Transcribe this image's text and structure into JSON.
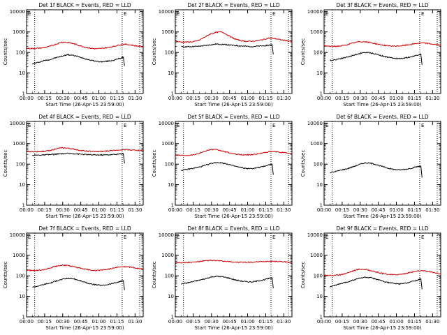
{
  "figure": {
    "panels": [
      {
        "id": "1f",
        "title": "Det 1f BLACK = Events, RED = LLD"
      },
      {
        "id": "2f",
        "title": "Det 2f BLACK = Events, RED = LLD"
      },
      {
        "id": "3f",
        "title": "Det 3f BLACK = Events, RED = LLD"
      },
      {
        "id": "4f",
        "title": "Det 4f BLACK = Events, RED = LLD"
      },
      {
        "id": "5f",
        "title": "Det 5f BLACK = Events, RED = LLD"
      },
      {
        "id": "6f",
        "title": "Det 6f BLACK = Events, RED = LLD"
      },
      {
        "id": "7f",
        "title": "Det 7f BLACK = Events, RED = LLD"
      },
      {
        "id": "8f",
        "title": "Det 8f BLACK = Events, RED = LLD"
      },
      {
        "id": "9f",
        "title": "Det 9f BLACK = Events, RED = LLD"
      }
    ]
  },
  "chart_data": [
    {
      "type": "line",
      "title": "Det 1f BLACK = Events, RED = LLD",
      "xlabel": "Start Time (26-Apr-15 23:59:00)",
      "ylabel": "Counts/sec",
      "y_scale": "log",
      "ylim": [
        1,
        12000
      ],
      "xlim": [
        0,
        100
      ],
      "x_tick_labels": [
        "00:00",
        "00:15",
        "00:30",
        "00:45",
        "01:00",
        "01:15",
        "01:30"
      ],
      "y_tick_labels": [
        "1",
        "10",
        "100",
        "1000",
        "10000"
      ],
      "vlines": [
        7,
        82,
        97
      ],
      "edge_markers": [
        "E",
        "E"
      ],
      "series": [
        {
          "color": "#000000",
          "x": [
            5,
            10,
            15,
            20,
            25,
            30,
            35,
            40,
            45,
            50,
            55,
            60,
            65,
            70,
            75,
            80,
            83,
            84
          ],
          "y": [
            28,
            33,
            40,
            45,
            55,
            65,
            78,
            72,
            62,
            50,
            42,
            37,
            35,
            38,
            42,
            52,
            58,
            22
          ]
        },
        {
          "color": "#cc0000",
          "x": [
            0,
            5,
            10,
            15,
            20,
            25,
            30,
            35,
            40,
            45,
            50,
            55,
            60,
            65,
            70,
            75,
            80,
            85,
            90,
            95,
            100
          ],
          "y": [
            160,
            155,
            160,
            170,
            200,
            250,
            320,
            310,
            270,
            220,
            180,
            160,
            150,
            160,
            175,
            200,
            235,
            250,
            230,
            205,
            190
          ]
        }
      ]
    },
    {
      "type": "line",
      "title": "Det 2f BLACK = Events, RED = LLD",
      "xlabel": "Start Time (26-Apr-15 23:59:00)",
      "ylabel": "Counts/sec",
      "y_scale": "log",
      "ylim": [
        1,
        12000
      ],
      "xlim": [
        0,
        100
      ],
      "x_tick_labels": [
        "00:00",
        "00:15",
        "00:30",
        "00:45",
        "01:00",
        "01:15",
        "01:30"
      ],
      "y_tick_labels": [
        "1",
        "10",
        "100",
        "1000",
        "10000"
      ],
      "vlines": [
        7,
        82,
        97
      ],
      "edge_markers": [
        "E",
        "E"
      ],
      "series": [
        {
          "color": "#000000",
          "x": [
            5,
            10,
            15,
            20,
            25,
            30,
            35,
            40,
            45,
            50,
            55,
            60,
            65,
            70,
            75,
            80,
            83,
            84
          ],
          "y": [
            190,
            190,
            195,
            200,
            215,
            235,
            255,
            250,
            235,
            220,
            210,
            200,
            195,
            200,
            210,
            225,
            235,
            80
          ]
        },
        {
          "color": "#cc0000",
          "x": [
            0,
            5,
            10,
            15,
            20,
            25,
            30,
            35,
            40,
            45,
            50,
            55,
            60,
            65,
            70,
            75,
            80,
            85,
            90,
            95,
            100
          ],
          "y": [
            350,
            320,
            320,
            330,
            380,
            550,
            800,
            950,
            1000,
            700,
            480,
            390,
            350,
            350,
            370,
            420,
            500,
            480,
            420,
            380,
            340
          ]
        }
      ]
    },
    {
      "type": "line",
      "title": "Det 3f BLACK = Events, RED = LLD",
      "xlabel": "Start Time (26-Apr-15 23:59:00)",
      "ylabel": "Counts/sec",
      "y_scale": "log",
      "ylim": [
        1,
        12000
      ],
      "xlim": [
        0,
        100
      ],
      "x_tick_labels": [
        "00:00",
        "00:15",
        "00:30",
        "00:45",
        "01:00",
        "01:15",
        "01:30"
      ],
      "y_tick_labels": [
        "1",
        "10",
        "100",
        "1000",
        "10000"
      ],
      "vlines": [
        7,
        82,
        97
      ],
      "edge_markers": [
        "E",
        "E"
      ],
      "series": [
        {
          "color": "#000000",
          "x": [
            5,
            10,
            15,
            20,
            25,
            30,
            35,
            40,
            45,
            50,
            55,
            60,
            65,
            70,
            75,
            80,
            83,
            84
          ],
          "y": [
            40,
            45,
            52,
            60,
            72,
            88,
            100,
            95,
            82,
            68,
            58,
            52,
            50,
            55,
            62,
            75,
            82,
            25
          ]
        },
        {
          "color": "#cc0000",
          "x": [
            0,
            5,
            10,
            15,
            20,
            25,
            30,
            35,
            40,
            45,
            50,
            55,
            60,
            65,
            70,
            75,
            80,
            85,
            90,
            95,
            100
          ],
          "y": [
            210,
            200,
            200,
            210,
            240,
            290,
            340,
            330,
            300,
            260,
            230,
            210,
            200,
            210,
            225,
            250,
            280,
            290,
            270,
            245,
            225
          ]
        }
      ]
    },
    {
      "type": "line",
      "title": "Det 4f BLACK = Events, RED = LLD",
      "xlabel": "Start Time (26-Apr-15 23:59:00)",
      "ylabel": "Counts/sec",
      "y_scale": "log",
      "ylim": [
        1,
        12000
      ],
      "xlim": [
        0,
        100
      ],
      "x_tick_labels": [
        "00:00",
        "00:15",
        "00:30",
        "00:45",
        "01:00",
        "01:15",
        "01:30"
      ],
      "y_tick_labels": [
        "1",
        "10",
        "100",
        "1000",
        "10000"
      ],
      "vlines": [
        7,
        82,
        97
      ],
      "edge_markers": [
        "E",
        "E"
      ],
      "series": [
        {
          "color": "#000000",
          "x": [
            5,
            10,
            15,
            20,
            25,
            30,
            35,
            40,
            45,
            50,
            55,
            60,
            65,
            70,
            75,
            80,
            83,
            84
          ],
          "y": [
            270,
            275,
            280,
            290,
            305,
            320,
            330,
            325,
            310,
            295,
            285,
            280,
            280,
            285,
            295,
            310,
            320,
            110
          ]
        },
        {
          "color": "#cc0000",
          "x": [
            0,
            5,
            10,
            15,
            20,
            25,
            30,
            35,
            40,
            45,
            50,
            55,
            60,
            65,
            70,
            75,
            80,
            85,
            90,
            95,
            100
          ],
          "y": [
            420,
            410,
            410,
            420,
            460,
            550,
            620,
            600,
            540,
            480,
            440,
            420,
            410,
            420,
            440,
            470,
            500,
            510,
            490,
            470,
            450
          ]
        }
      ]
    },
    {
      "type": "line",
      "title": "Det 5f BLACK = Events, RED = LLD",
      "xlabel": "Start Time (26-Apr-15 23:59:00)",
      "ylabel": "Counts/sec",
      "y_scale": "log",
      "ylim": [
        1,
        12000
      ],
      "xlim": [
        0,
        100
      ],
      "x_tick_labels": [
        "00:00",
        "00:15",
        "00:30",
        "00:45",
        "01:00",
        "01:15",
        "01:30"
      ],
      "y_tick_labels": [
        "1",
        "10",
        "100",
        "1000",
        "10000"
      ],
      "vlines": [
        7,
        82,
        97
      ],
      "edge_markers": [
        "E",
        "E"
      ],
      "series": [
        {
          "color": "#000000",
          "x": [
            5,
            10,
            15,
            20,
            25,
            30,
            35,
            40,
            45,
            50,
            55,
            60,
            65,
            70,
            75,
            80,
            83,
            84
          ],
          "y": [
            50,
            55,
            62,
            70,
            85,
            105,
            120,
            115,
            100,
            82,
            70,
            62,
            60,
            66,
            75,
            92,
            100,
            30
          ]
        },
        {
          "color": "#cc0000",
          "x": [
            0,
            5,
            10,
            15,
            20,
            25,
            30,
            35,
            40,
            45,
            50,
            55,
            60,
            65,
            70,
            75,
            80,
            85,
            90,
            95,
            100
          ],
          "y": [
            280,
            270,
            270,
            285,
            330,
            420,
            520,
            500,
            440,
            370,
            320,
            290,
            280,
            290,
            310,
            350,
            400,
            410,
            380,
            350,
            320
          ]
        }
      ]
    },
    {
      "type": "line",
      "title": "Det 6f BLACK = Events, RED = LLD",
      "xlabel": "Start Time (26-Apr-15 23:59:00)",
      "ylabel": "Counts/sec",
      "y_scale": "log",
      "ylim": [
        1,
        12000
      ],
      "xlim": [
        0,
        100
      ],
      "x_tick_labels": [
        "00:00",
        "00:15",
        "00:30",
        "00:45",
        "01:00",
        "01:15",
        "01:30"
      ],
      "y_tick_labels": [
        "1",
        "10",
        "100",
        "1000",
        "10000"
      ],
      "vlines": [
        7,
        82,
        97
      ],
      "edge_markers": [
        "E",
        "E"
      ],
      "series": [
        {
          "color": "#000000",
          "x": [
            5,
            10,
            15,
            20,
            25,
            30,
            35,
            40,
            45,
            50,
            55,
            60,
            65,
            70,
            75,
            80,
            83,
            84
          ],
          "y": [
            38,
            44,
            52,
            60,
            75,
            95,
            115,
            110,
            95,
            76,
            63,
            55,
            52,
            56,
            64,
            75,
            80,
            22
          ]
        }
      ]
    },
    {
      "type": "line",
      "title": "Det 7f BLACK = Events, RED = LLD",
      "xlabel": "Start Time (26-Apr-15 23:59:00)",
      "ylabel": "Counts/sec",
      "y_scale": "log",
      "ylim": [
        1,
        12000
      ],
      "xlim": [
        0,
        100
      ],
      "x_tick_labels": [
        "00:00",
        "00:15",
        "00:30",
        "00:45",
        "01:00",
        "01:15",
        "01:30"
      ],
      "y_tick_labels": [
        "1",
        "10",
        "100",
        "1000",
        "10000"
      ],
      "vlines": [
        7,
        82,
        97
      ],
      "edge_markers": [
        "E",
        "E"
      ],
      "series": [
        {
          "color": "#000000",
          "x": [
            5,
            10,
            15,
            20,
            25,
            30,
            35,
            40,
            45,
            50,
            55,
            60,
            65,
            70,
            75,
            80,
            83,
            84
          ],
          "y": [
            28,
            32,
            38,
            44,
            55,
            66,
            75,
            72,
            60,
            48,
            40,
            36,
            34,
            38,
            44,
            52,
            58,
            20
          ]
        },
        {
          "color": "#cc0000",
          "x": [
            0,
            5,
            10,
            15,
            20,
            25,
            30,
            35,
            40,
            45,
            50,
            55,
            60,
            65,
            70,
            75,
            80,
            85,
            90,
            95,
            100
          ],
          "y": [
            190,
            180,
            185,
            200,
            240,
            290,
            330,
            320,
            280,
            240,
            210,
            190,
            180,
            190,
            210,
            240,
            270,
            280,
            260,
            230,
            210
          ]
        }
      ]
    },
    {
      "type": "line",
      "title": "Det 8f BLACK = Events, RED = LLD",
      "xlabel": "Start Time (26-Apr-15 23:59:00)",
      "ylabel": "Counts/sec",
      "y_scale": "log",
      "ylim": [
        1,
        12000
      ],
      "xlim": [
        0,
        100
      ],
      "x_tick_labels": [
        "00:00",
        "00:15",
        "00:30",
        "00:45",
        "01:00",
        "01:15",
        "01:30"
      ],
      "y_tick_labels": [
        "1",
        "10",
        "100",
        "1000",
        "10000"
      ],
      "vlines": [
        7,
        82,
        97
      ],
      "edge_markers": [
        "E",
        "E"
      ],
      "series": [
        {
          "color": "#000000",
          "x": [
            5,
            10,
            15,
            20,
            25,
            30,
            35,
            40,
            45,
            50,
            55,
            60,
            65,
            70,
            75,
            80,
            83,
            84
          ],
          "y": [
            40,
            45,
            52,
            60,
            70,
            85,
            95,
            90,
            80,
            66,
            57,
            52,
            50,
            55,
            62,
            74,
            80,
            25
          ]
        },
        {
          "color": "#cc0000",
          "x": [
            0,
            5,
            10,
            15,
            20,
            25,
            30,
            35,
            40,
            45,
            50,
            55,
            60,
            65,
            70,
            75,
            80,
            85,
            90,
            95,
            100
          ],
          "y": [
            450,
            440,
            440,
            460,
            490,
            530,
            560,
            550,
            520,
            490,
            470,
            460,
            450,
            460,
            470,
            490,
            510,
            510,
            490,
            470,
            460
          ]
        }
      ]
    },
    {
      "type": "line",
      "title": "Det 9f BLACK = Events, RED = LLD",
      "xlabel": "Start Time (26-Apr-15 23:59:00)",
      "ylabel": "Counts/sec",
      "y_scale": "log",
      "ylim": [
        1,
        12000
      ],
      "xlim": [
        0,
        100
      ],
      "x_tick_labels": [
        "00:00",
        "00:15",
        "00:30",
        "00:45",
        "01:00",
        "01:15",
        "01:30"
      ],
      "y_tick_labels": [
        "1",
        "10",
        "100",
        "1000",
        "10000"
      ],
      "vlines": [
        7,
        82,
        97
      ],
      "edge_markers": [
        "E",
        "E"
      ],
      "series": [
        {
          "color": "#000000",
          "x": [
            5,
            10,
            15,
            20,
            25,
            30,
            35,
            40,
            45,
            50,
            55,
            60,
            65,
            70,
            75,
            80,
            83,
            84
          ],
          "y": [
            30,
            35,
            42,
            50,
            62,
            75,
            85,
            80,
            68,
            55,
            47,
            42,
            40,
            44,
            52,
            62,
            70,
            22
          ]
        },
        {
          "color": "#cc0000",
          "x": [
            0,
            5,
            10,
            15,
            20,
            25,
            30,
            35,
            40,
            45,
            50,
            55,
            60,
            65,
            70,
            75,
            80,
            85,
            90,
            95,
            100
          ],
          "y": [
            110,
            105,
            105,
            115,
            140,
            175,
            210,
            205,
            180,
            150,
            130,
            118,
            112,
            118,
            130,
            150,
            170,
            175,
            160,
            140,
            125
          ]
        }
      ]
    }
  ]
}
